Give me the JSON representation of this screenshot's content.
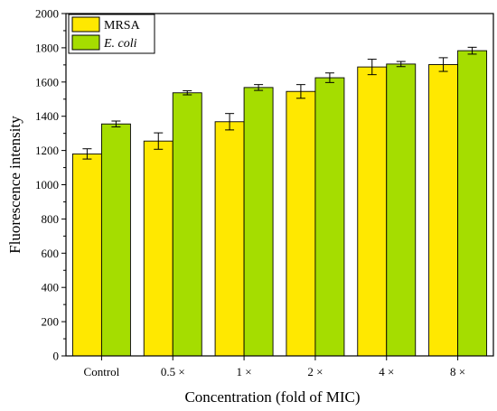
{
  "chart_data": {
    "type": "bar",
    "xlabel": "Concentration (fold of MIC)",
    "ylabel": "Fluorescence intensity",
    "categories": [
      "Control",
      "0.5 ×",
      "1 ×",
      "2 ×",
      "4 ×",
      "8 ×"
    ],
    "ylim": [
      0,
      2000
    ],
    "yticks": [
      0,
      200,
      400,
      600,
      800,
      1000,
      1200,
      1400,
      1600,
      1800,
      2000
    ],
    "grid": false,
    "legend_position": "top-left",
    "series": [
      {
        "name": "MRSA",
        "color": "#FFE800",
        "values": [
          1180,
          1255,
          1368,
          1545,
          1688,
          1702
        ],
        "errors": [
          30,
          48,
          48,
          40,
          45,
          40
        ]
      },
      {
        "name": "E. coli",
        "color": "#A5DD00",
        "italic": true,
        "values": [
          1355,
          1537,
          1568,
          1625,
          1705,
          1783
        ],
        "errors": [
          17,
          12,
          17,
          28,
          15,
          20
        ]
      }
    ]
  }
}
